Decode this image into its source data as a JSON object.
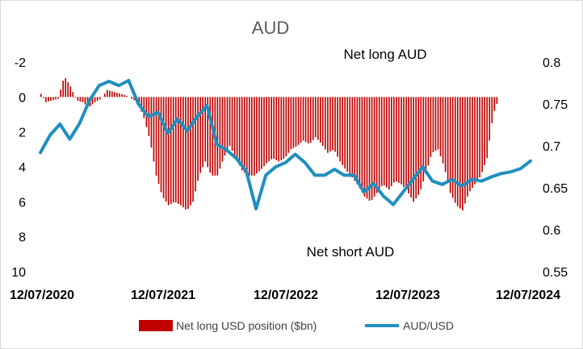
{
  "chart_data": {
    "type": "bar+line",
    "title": "AUD",
    "annotations": {
      "top": "Net long AUD",
      "bottom": "Net short AUD"
    },
    "x_tick_labels": [
      "12/07/2020",
      "12/07/2021",
      "12/07/2022",
      "12/07/2023",
      "12/07/2024"
    ],
    "y_left": {
      "reversed": true,
      "range": [
        -2,
        10
      ],
      "ticks": [
        "-2",
        "0",
        "2",
        "4",
        "6",
        "8",
        "10"
      ]
    },
    "y_right": {
      "range": [
        0.55,
        0.8
      ],
      "ticks": [
        "0.8",
        "0.75",
        "0.7",
        "0.65",
        "0.6",
        "0.55"
      ]
    },
    "legend": {
      "position": "bottom",
      "entries": [
        "Net long USD position ($bn)",
        "AUD/USD"
      ]
    },
    "colors": {
      "bars": "#c00000",
      "line": "#1f8fbf",
      "frame": "#d9d9d9"
    },
    "series": [
      {
        "name": "Net long USD position ($bn)",
        "type": "bar",
        "axis": "left",
        "t": [
          0,
          0.0125,
          0.025,
          0.0375,
          0.05,
          0.0625,
          0.075,
          0.0875,
          0.1,
          0.1125,
          0.125,
          0.1375,
          0.15,
          0.1625,
          0.175,
          0.1875,
          0.2,
          0.2125,
          0.225,
          0.2375,
          0.25,
          0.2625,
          0.275,
          0.2875,
          0.3,
          0.3125,
          0.325,
          0.3375,
          0.35,
          0.3625,
          0.375,
          0.3875,
          0.4,
          0.4125,
          0.425,
          0.4375,
          0.45,
          0.4625,
          0.475,
          0.4875,
          0.5,
          0.5125,
          0.525,
          0.5375,
          0.55,
          0.5625,
          0.575,
          0.5875,
          0.6,
          0.6125,
          0.625,
          0.6375,
          0.65,
          0.6625,
          0.675,
          0.6875,
          0.7,
          0.7125,
          0.725,
          0.7375,
          0.75,
          0.7625,
          0.775,
          0.7875,
          0.8,
          0.8125,
          0.825,
          0.8375,
          0.85,
          0.8625,
          0.875,
          0.8875,
          0.9,
          0.9125,
          0.925,
          0.9375,
          0.95,
          0.9625,
          0.975,
          0.9875,
          1
        ],
        "values": [
          -0.3,
          0.3,
          0.2,
          0.1,
          -1.2,
          -0.6,
          0.2,
          0.3,
          0.6,
          0.3,
          0.1,
          -0.4,
          -0.3,
          -0.2,
          -0.1,
          0.1,
          0.3,
          1.2,
          2.5,
          4.5,
          5.7,
          6.2,
          6.0,
          6.2,
          6.5,
          6.0,
          4.5,
          3.7,
          4.5,
          4.5,
          3.5,
          2.8,
          3.5,
          4.2,
          4.5,
          4.5,
          4.2,
          3.8,
          3.5,
          3.7,
          3.5,
          3.0,
          2.8,
          2.5,
          2.7,
          2.3,
          2.7,
          3.2,
          3.0,
          3.7,
          4.2,
          4.6,
          5.1,
          5.7,
          6.0,
          5.5,
          5.0,
          5.3,
          4.8,
          5.0,
          5.4,
          6.0,
          5.5,
          4.4,
          3.2,
          3.0,
          4.0,
          5.5,
          6.2,
          6.5,
          5.5,
          5.0,
          4.5,
          3.5,
          1.0,
          0.0,
          0,
          0,
          0,
          0,
          0
        ]
      },
      {
        "name": "AUD/USD",
        "type": "line",
        "axis": "right",
        "t": [
          0,
          0.02,
          0.04,
          0.06,
          0.08,
          0.1,
          0.12,
          0.14,
          0.16,
          0.18,
          0.2,
          0.22,
          0.24,
          0.26,
          0.28,
          0.3,
          0.32,
          0.34,
          0.36,
          0.38,
          0.4,
          0.42,
          0.44,
          0.46,
          0.48,
          0.5,
          0.52,
          0.54,
          0.56,
          0.58,
          0.6,
          0.62,
          0.64,
          0.66,
          0.68,
          0.7,
          0.72,
          0.74,
          0.76,
          0.78,
          0.8,
          0.82,
          0.84,
          0.86,
          0.88,
          0.9,
          0.92,
          0.94,
          0.96,
          0.98,
          1
        ],
        "values": [
          0.692,
          0.713,
          0.726,
          0.708,
          0.727,
          0.754,
          0.772,
          0.777,
          0.772,
          0.778,
          0.75,
          0.735,
          0.74,
          0.715,
          0.732,
          0.718,
          0.735,
          0.748,
          0.702,
          0.695,
          0.685,
          0.67,
          0.625,
          0.665,
          0.675,
          0.68,
          0.69,
          0.68,
          0.665,
          0.665,
          0.672,
          0.665,
          0.665,
          0.645,
          0.655,
          0.64,
          0.63,
          0.645,
          0.66,
          0.675,
          0.658,
          0.654,
          0.66,
          0.652,
          0.66,
          0.658,
          0.663,
          0.667,
          0.669,
          0.673,
          0.682
        ]
      }
    ]
  }
}
